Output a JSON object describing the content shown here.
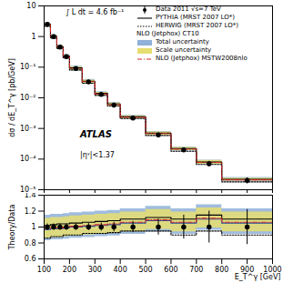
{
  "chart_data": [
    {
      "type": "line",
      "ylabel": "dσ / dE_T^γ [pb/GeV]",
      "annotations": [
        "∫ L dt = 4.6 fb⁻¹",
        "ATLAS",
        "|ηᵞ|<1.37"
      ],
      "legend": "top-right",
      "legend_title": "NLO (Jetphox) CT10",
      "log": "y",
      "grid": false,
      "tick_labels": "y",
      "bins": [
        100,
        125,
        150,
        175,
        200,
        250,
        300,
        350,
        400,
        500,
        600,
        700,
        800,
        1000
      ],
      "xlim": [
        100,
        1000
      ],
      "xticks": [
        100,
        200,
        300,
        400,
        500,
        600,
        700,
        800,
        900,
        1000
      ],
      "ylim": [
        1e-05,
        10
      ],
      "yticks": [
        {
          "value": 1e-05,
          "label": "10⁻⁵"
        },
        {
          "value": 0.0001,
          "label": "10⁻⁴"
        },
        {
          "value": 0.001,
          "label": "10⁻³"
        },
        {
          "value": 0.01,
          "label": "10⁻²"
        },
        {
          "value": 0.1,
          "label": "10⁻¹"
        },
        1,
        10
      ],
      "series": [
        {
          "name": "Data 2011 √s=7 TeV",
          "type": "scatter",
          "marker": "circle",
          "color": "#000000",
          "values": [
            2.5,
            1.0,
            0.45,
            0.22,
            0.09,
            0.033,
            0.013,
            0.0058,
            0.0022,
            0.00062,
            0.0002,
            7e-05,
            2e-05
          ],
          "errors": [
            0.1,
            0.04,
            0.018,
            0.009,
            0.004,
            0.0015,
            0.0007,
            0.00035,
            0.00015,
            6e-05,
            3e-05,
            1.4e-05,
            4.5e-06
          ]
        },
        {
          "name": "PYTHIA (MRST 2007 LO*)",
          "type": "step",
          "line_style": "solid",
          "color": "#000000",
          "values": [
            2.55,
            1.03,
            0.47,
            0.23,
            0.095,
            0.035,
            0.014,
            0.0063,
            0.0024,
            0.0007,
            0.00022,
            8e-05,
            2.2e-05
          ]
        },
        {
          "name": "HERWIG (MRST 2007 LO*)",
          "type": "step",
          "line_style": "dotted",
          "color": "#000000",
          "values": [
            2.15,
            0.88,
            0.4,
            0.2,
            0.081,
            0.03,
            0.012,
            0.0054,
            0.0021,
            0.00059,
            0.00018,
            6.7e-05,
            1.8e-05
          ]
        },
        {
          "name": "Total uncertainty",
          "type": "band",
          "color": "#8fb0d8",
          "low": [
            2.1,
            0.84,
            0.38,
            0.19,
            0.077,
            0.029,
            0.0114,
            0.0052,
            0.002,
            0.00059,
            0.00018,
            6.6e-05,
            1.8e-05
          ],
          "high": [
            2.87,
            1.16,
            0.53,
            0.26,
            0.107,
            0.04,
            0.016,
            0.0071,
            0.0027,
            0.0008,
            0.00025,
            9.3e-05,
            2.5e-05
          ]
        },
        {
          "name": "Scale uncertainty",
          "type": "band",
          "color": "#e6de70",
          "low": [
            2.17,
            0.87,
            0.39,
            0.195,
            0.08,
            0.03,
            0.0118,
            0.0053,
            0.0021,
            0.0006,
            0.00019,
            6.8e-05,
            1.9e-05
          ],
          "high": [
            2.78,
            1.12,
            0.51,
            0.25,
            0.103,
            0.038,
            0.0152,
            0.0068,
            0.0026,
            0.00077,
            0.00024,
            9e-05,
            2.4e-05
          ]
        },
        {
          "name": "NLO (Jetphox) MSTW2008nlo",
          "type": "step",
          "line_style": "dashdot",
          "color": "#d62728",
          "values": [
            2.45,
            0.99,
            0.45,
            0.22,
            0.091,
            0.034,
            0.0134,
            0.006,
            0.0023,
            0.00068,
            0.00021,
            7.8e-05,
            2.1e-05
          ]
        }
      ]
    },
    {
      "type": "line",
      "ylabel": "Theory/Data",
      "xlabel": "E_T^γ [GeV]",
      "grid": false,
      "bins": [
        100,
        125,
        150,
        175,
        200,
        250,
        300,
        350,
        400,
        500,
        600,
        700,
        800,
        1000
      ],
      "xlim": [
        100,
        1000
      ],
      "xticks": [
        100,
        200,
        300,
        400,
        500,
        600,
        700,
        800,
        900,
        1000
      ],
      "ylim": [
        0.6,
        1.4
      ],
      "yticks": [
        0.6,
        0.8,
        1,
        1.2,
        1.4
      ],
      "series": [
        {
          "name": "Total uncertainty",
          "type": "band",
          "color": "#8fb0d8",
          "low": [
            0.83,
            0.84,
            0.84,
            0.85,
            0.86,
            0.87,
            0.88,
            0.89,
            0.91,
            0.94,
            0.91,
            0.96,
            0.91
          ],
          "high": [
            1.15,
            1.16,
            1.16,
            1.17,
            1.18,
            1.19,
            1.2,
            1.21,
            1.23,
            1.26,
            1.23,
            1.28,
            1.23
          ]
        },
        {
          "name": "Scale uncertainty",
          "type": "band",
          "color": "#e6de70",
          "low": [
            0.86,
            0.87,
            0.87,
            0.88,
            0.89,
            0.9,
            0.91,
            0.92,
            0.94,
            0.97,
            0.94,
            0.99,
            0.94
          ],
          "high": [
            1.11,
            1.12,
            1.12,
            1.13,
            1.14,
            1.15,
            1.16,
            1.17,
            1.19,
            1.22,
            1.19,
            1.24,
            1.19
          ]
        },
        {
          "name": "NLO (Jetphox) CT10",
          "type": "step",
          "line_style": "solid",
          "color": "#1f4e9c",
          "values": [
            0.97,
            0.98,
            0.98,
            0.99,
            1.0,
            1.01,
            1.02,
            1.03,
            1.05,
            1.08,
            1.05,
            1.1,
            1.05
          ]
        },
        {
          "name": "PYTHIA (MRST 2007 LO*)",
          "type": "step",
          "line_style": "solid",
          "color": "#000000",
          "values": [
            1.02,
            1.03,
            1.04,
            1.04,
            1.05,
            1.06,
            1.07,
            1.08,
            1.1,
            1.12,
            1.1,
            1.15,
            1.1
          ]
        },
        {
          "name": "HERWIG (MRST 2007 LO*)",
          "type": "step",
          "line_style": "dotted",
          "color": "#000000",
          "values": [
            0.86,
            0.88,
            0.88,
            0.9,
            0.9,
            0.92,
            0.92,
            0.93,
            0.95,
            0.95,
            0.9,
            0.95,
            0.9
          ]
        },
        {
          "name": "NLO (Jetphox) MSTW2008nlo",
          "type": "step",
          "line_style": "dashdot",
          "color": "#d62728",
          "values": [
            0.98,
            0.99,
            0.99,
            1.0,
            1.01,
            1.02,
            1.03,
            1.04,
            1.06,
            1.09,
            1.06,
            1.11,
            1.06
          ]
        },
        {
          "name": "Data 2011 √s=7 TeV",
          "type": "scatter",
          "marker": "circle",
          "color": "#000000",
          "values": [
            1,
            1,
            1,
            1,
            1,
            1,
            1,
            1,
            1,
            1,
            1,
            1,
            1
          ],
          "errors": [
            0.04,
            0.04,
            0.04,
            0.04,
            0.04,
            0.045,
            0.05,
            0.06,
            0.07,
            0.1,
            0.15,
            0.2,
            0.22
          ]
        }
      ]
    }
  ]
}
